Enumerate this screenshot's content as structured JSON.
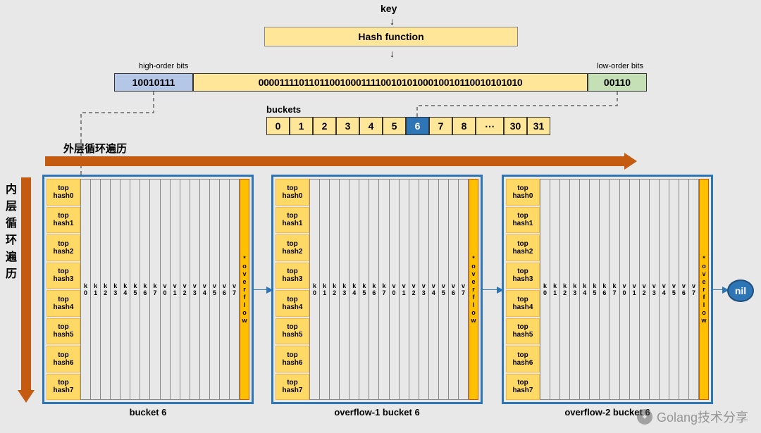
{
  "top": {
    "key_label": "key",
    "hash_func": "Hash function",
    "high_label": "high-order bits",
    "low_label": "low-order bits",
    "high_bits": "10010111",
    "mid_bits": "000011110110110010001111001010100010010110010101010",
    "low_bits": "00110"
  },
  "buckets": {
    "label": "buckets",
    "cells": [
      "0",
      "1",
      "2",
      "3",
      "4",
      "5",
      "6",
      "7",
      "8",
      "⋯",
      "30",
      "31"
    ],
    "highlight_index": 6
  },
  "loops": {
    "outer_label": "外层循环遍历",
    "inner_label": "内层循环遍历"
  },
  "bucket_struct": {
    "tophash": [
      "top\nhash0",
      "top\nhash1",
      "top\nhash2",
      "top\nhash3",
      "top\nhash4",
      "top\nhash5",
      "top\nhash6",
      "top\nhash7"
    ],
    "kv": [
      "k0",
      "k1",
      "k2",
      "k3",
      "k4",
      "k5",
      "k6",
      "k7",
      "v0",
      "v1",
      "v2",
      "v3",
      "v4",
      "v5",
      "v6",
      "v7"
    ],
    "overflow": "*overflow",
    "captions": [
      "bucket 6",
      "overflow-1 bucket 6",
      "overflow-2 bucket 6"
    ]
  },
  "nil": "nil",
  "watermark": "Golang技术分享",
  "colors": {
    "bg": "#e8e8e8",
    "yellow_light": "#ffe699",
    "yellow_mid": "#ffd966",
    "yellow_deep": "#ffc000",
    "blue_light": "#b4c7e7",
    "blue_mid": "#2e75b6",
    "green_light": "#c5e0b4",
    "orange": "#c55a11"
  }
}
